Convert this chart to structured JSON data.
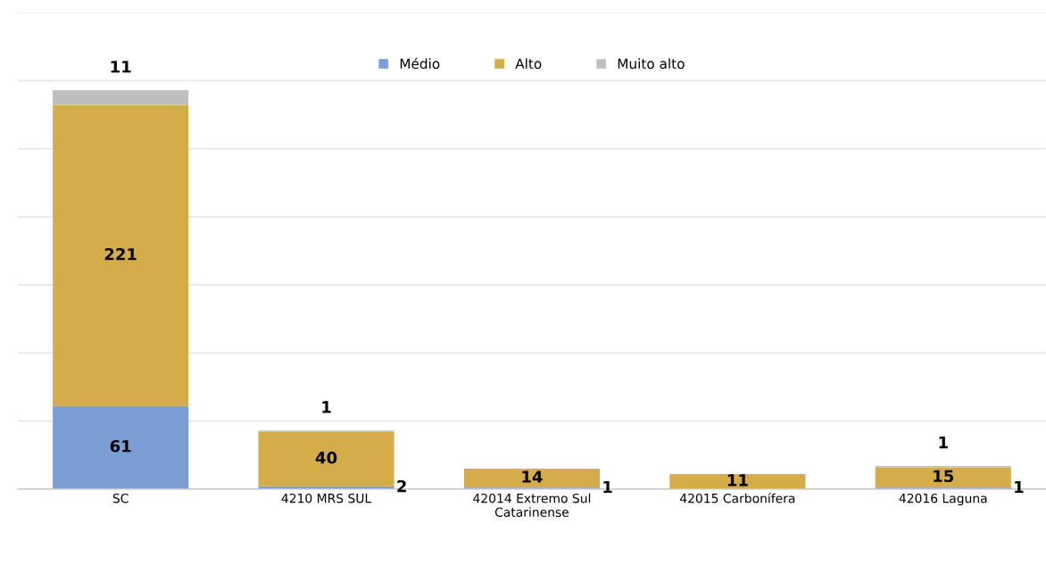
{
  "chart_data": {
    "type": "bar",
    "stacked": true,
    "categories": [
      "SC",
      "4210 MRS SUL",
      "42014 Extremo Sul\nCatarinense",
      "42015 Carbonífera",
      "42016 Laguna"
    ],
    "series": [
      {
        "name": "Médio",
        "color": "#7b9fd4",
        "values": [
          61,
          2,
          1,
          null,
          1
        ]
      },
      {
        "name": "Alto",
        "color": "#d4ad4a",
        "values": [
          221,
          40,
          14,
          11,
          15
        ]
      },
      {
        "name": "Muito alto",
        "color": "#bfbfbf",
        "values": [
          11,
          1,
          null,
          null,
          1
        ]
      }
    ],
    "ylim": [
      0,
      350
    ],
    "yticks": [
      {
        "value": 0,
        "label": null
      },
      {
        "value": 50,
        "label": null
      },
      {
        "value": 100,
        "label": null
      },
      {
        "value": 150,
        "label": null
      },
      {
        "value": 200,
        "label": null
      },
      {
        "value": 250,
        "label": null
      },
      {
        "value": 300,
        "label": null
      },
      {
        "value": 350,
        "label": null
      }
    ],
    "tick_labels": "x",
    "grid": "y",
    "legend": "top",
    "data_labels": true
  }
}
